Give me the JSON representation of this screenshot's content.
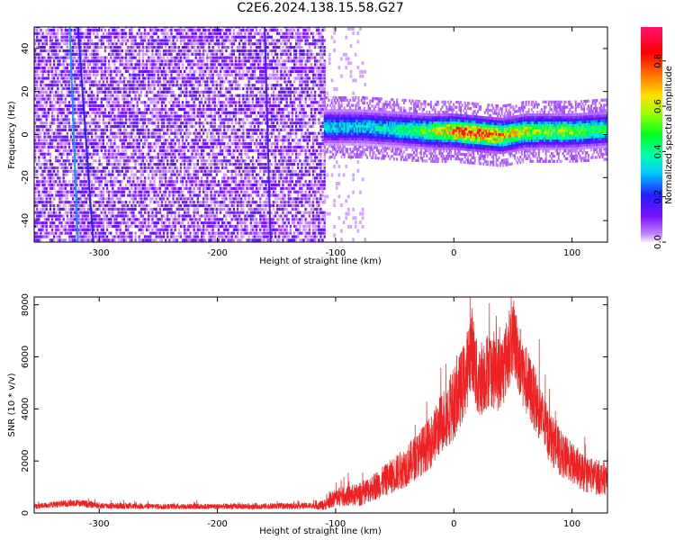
{
  "title": "C2E6.2024.138.15.58.G27",
  "colors": {
    "heat_low": "#e6d4f7",
    "heat_mid": "#7a1fe6",
    "snr_line": "#ee2222",
    "frame": "#000000"
  },
  "colorbar": {
    "label": "Normalized spectral amplitude",
    "ticks": [
      "0.0",
      "0.2",
      "0.4",
      "0.6",
      "0.8"
    ],
    "tick_values": [
      0.0,
      0.2,
      0.4,
      0.6,
      0.8
    ],
    "range": [
      0.0,
      0.95
    ],
    "colormap": "hsv-like (violet→blue→cyan→green→yellow→red→magenta)"
  },
  "chart_data": [
    {
      "type": "heatmap",
      "title": "",
      "xlabel": "Height of straight line (km)",
      "ylabel": "Frequency (Hz)",
      "xlim": [
        -355,
        130
      ],
      "ylim": [
        -50,
        50
      ],
      "x_ticks": [
        -300,
        -200,
        -100,
        0,
        100
      ],
      "x_tick_labels": [
        "-300",
        "-200",
        "-100",
        "0",
        "100"
      ],
      "y_ticks": [
        -40,
        -20,
        0,
        20,
        40
      ],
      "y_tick_labels": [
        "-40",
        "-20",
        "0",
        "20",
        "40"
      ],
      "regions": [
        {
          "x_range": [
            -355,
            -110
          ],
          "description_value": "noise",
          "amplitude_approx": 0.1
        },
        {
          "x_range": [
            -110,
            130
          ],
          "center_frequency_hz": 0,
          "band_halfwidth_hz": 6,
          "amplitude_peak_approx": 0.85
        }
      ],
      "band_profile": {
        "x": [
          -110,
          -80,
          -50,
          -20,
          0,
          20,
          40,
          60,
          80,
          100,
          130
        ],
        "peak_amplitude": [
          0.35,
          0.35,
          0.4,
          0.55,
          0.75,
          0.85,
          0.7,
          0.6,
          0.55,
          0.55,
          0.45
        ],
        "center_hz": [
          3,
          3,
          2,
          1,
          1,
          0,
          -1,
          1,
          1,
          1,
          2
        ]
      }
    },
    {
      "type": "line",
      "title": "",
      "xlabel": "Height of straight line (km)",
      "ylabel": "SNR (10 * v/v)",
      "xlim": [
        -355,
        130
      ],
      "ylim": [
        0,
        8300
      ],
      "x_ticks": [
        -300,
        -200,
        -100,
        0,
        100
      ],
      "x_tick_labels": [
        "-300",
        "-200",
        "-100",
        "0",
        "100"
      ],
      "y_ticks": [
        0,
        2000,
        4000,
        6000,
        8000
      ],
      "y_tick_labels": [
        "0",
        "2000",
        "4000",
        "6000",
        "8000"
      ],
      "grid": false,
      "series": [
        {
          "x": [
            -355,
            -320,
            -300,
            -250,
            -200,
            -150,
            -120,
            -110,
            -100,
            -80,
            -60,
            -40,
            -20,
            -10,
            0,
            10,
            15,
            20,
            30,
            40,
            50,
            60,
            70,
            80,
            90,
            100,
            110,
            120,
            130
          ],
          "values": [
            250,
            400,
            280,
            250,
            250,
            260,
            280,
            300,
            600,
            700,
            1200,
            1800,
            2700,
            3500,
            4200,
            5200,
            6500,
            5000,
            5600,
            5300,
            6800,
            5200,
            4200,
            3000,
            2300,
            1900,
            1500,
            1400,
            1300
          ],
          "noise_amplitude": [
            100,
            150,
            120,
            110,
            110,
            120,
            120,
            200,
            350,
            450,
            600,
            800,
            1000,
            1200,
            1400,
            1500,
            1600,
            1500,
            1500,
            1500,
            1500,
            1400,
            1200,
            1000,
            900,
            800,
            700,
            700,
            600
          ]
        }
      ]
    }
  ]
}
